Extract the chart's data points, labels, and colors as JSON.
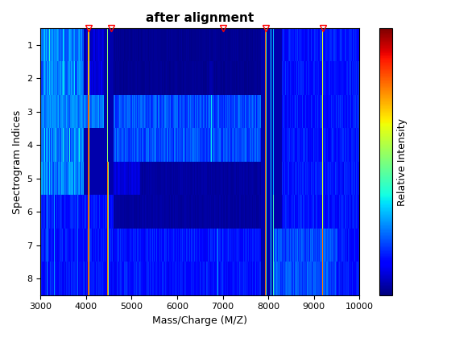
{
  "title": "after alignment",
  "xlabel": "Mass/Charge (M/Z)",
  "ylabel": "Spectrogram Indices",
  "colorbar_label": "Relative Intensity",
  "xlim": [
    3000,
    10000
  ],
  "mz_start": 3000,
  "mz_end": 10000,
  "n_spectra": 8,
  "n_mz": 700,
  "marker_mz": [
    4050,
    4550,
    7000,
    7950,
    9200
  ],
  "cmap": "jet",
  "xticks": [
    3000,
    4000,
    5000,
    6000,
    7000,
    8000,
    9000,
    10000
  ],
  "yticks": [
    1,
    2,
    3,
    4,
    5,
    6,
    7,
    8
  ],
  "title_fontweight": "bold",
  "title_fontsize": 11
}
